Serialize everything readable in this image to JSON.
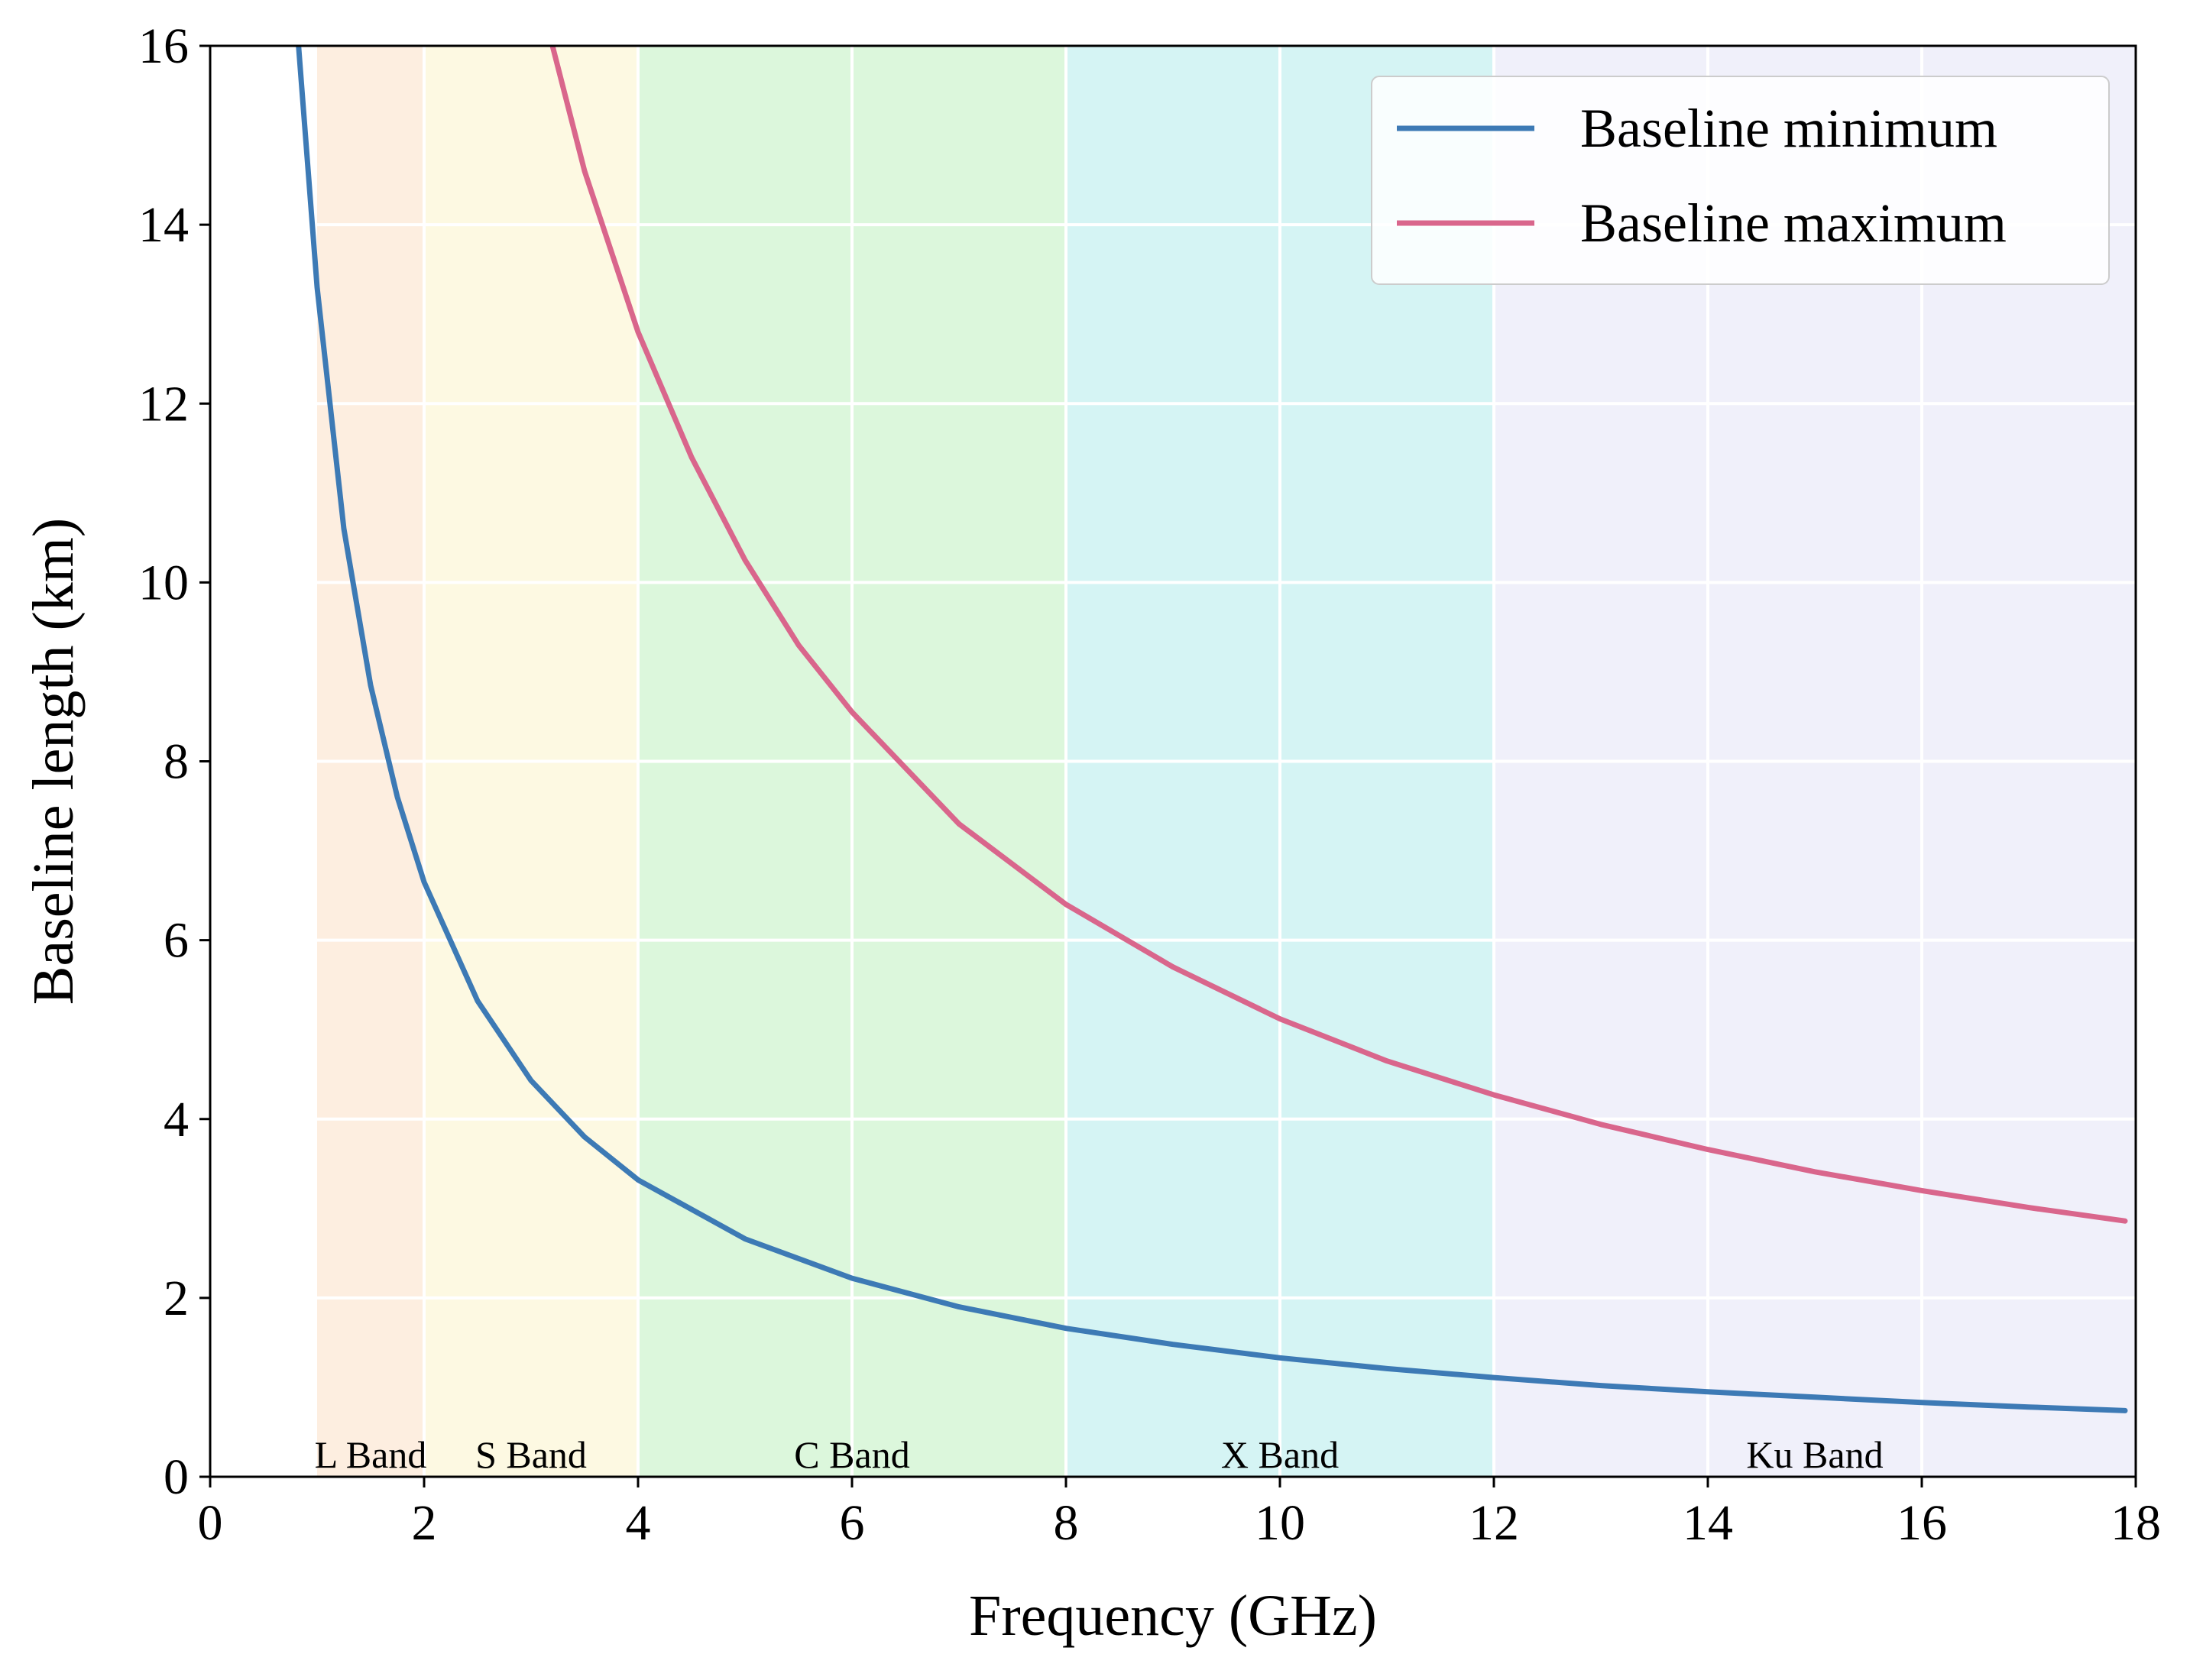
{
  "chart_data": {
    "type": "line",
    "xlabel": "Frequency (GHz)",
    "ylabel": "Baseline length (km)",
    "xlim": [
      0,
      18
    ],
    "ylim": [
      0,
      16
    ],
    "xticks": [
      0,
      2,
      4,
      6,
      8,
      10,
      12,
      14,
      16,
      18
    ],
    "yticks": [
      0,
      2,
      4,
      6,
      8,
      10,
      12,
      14,
      16
    ],
    "grid": true,
    "legend_position": "top-right",
    "bands": [
      {
        "label": "L Band",
        "start": 1,
        "end": 2,
        "color": "#fdeee0"
      },
      {
        "label": "S Band",
        "start": 2,
        "end": 4,
        "color": "#fdf9e2"
      },
      {
        "label": "C Band",
        "start": 4,
        "end": 8,
        "color": "#dcf7dc"
      },
      {
        "label": "X Band",
        "start": 8,
        "end": 12,
        "color": "#d5f4f4"
      },
      {
        "label": "Ku Band",
        "start": 12,
        "end": 18,
        "color": "#f0f0fa"
      }
    ],
    "series": [
      {
        "name": "Baseline minimum",
        "color": "#3d7ab5",
        "x": [
          0.82,
          1,
          1.25,
          1.5,
          1.75,
          2,
          2.5,
          3,
          3.5,
          4,
          5,
          6,
          7,
          8,
          9,
          10,
          11,
          12,
          13,
          14,
          15,
          16,
          17,
          17.9
        ],
        "y": [
          16.1,
          13.3,
          10.6,
          8.85,
          7.6,
          6.65,
          5.32,
          4.43,
          3.8,
          3.32,
          2.66,
          2.22,
          1.9,
          1.66,
          1.48,
          1.33,
          1.21,
          1.11,
          1.02,
          0.95,
          0.89,
          0.83,
          0.78,
          0.74
        ]
      },
      {
        "name": "Baseline maximum",
        "color": "#d9668c",
        "x": [
          3.2,
          3.5,
          4,
          4.5,
          5,
          5.5,
          6,
          7,
          8,
          9,
          10,
          11,
          12,
          13,
          14,
          15,
          16,
          17,
          17.9
        ],
        "y": [
          16.0,
          14.6,
          12.8,
          11.4,
          10.25,
          9.3,
          8.55,
          7.3,
          6.4,
          5.7,
          5.12,
          4.65,
          4.27,
          3.94,
          3.66,
          3.41,
          3.2,
          3.01,
          2.86
        ]
      }
    ]
  }
}
